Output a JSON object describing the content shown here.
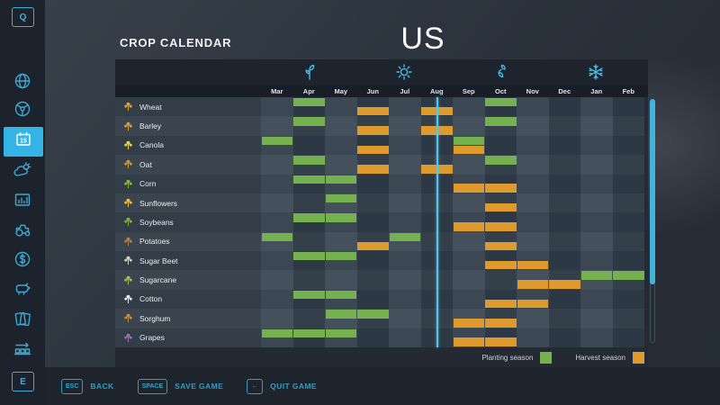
{
  "header": {
    "title": "CROP CALENDAR",
    "map_name": "US"
  },
  "sidebar": {
    "top_key": "Q",
    "bottom_key": "E",
    "items": [
      {
        "icon": "globe-icon",
        "selected": false
      },
      {
        "icon": "steering-wheel-icon",
        "selected": false
      },
      {
        "icon": "calendar-icon",
        "selected": true,
        "badge": "15"
      },
      {
        "icon": "weather-icon",
        "selected": false
      },
      {
        "icon": "statistics-icon",
        "selected": false
      },
      {
        "icon": "tractor-icon",
        "selected": false
      },
      {
        "icon": "finances-dollar-icon",
        "selected": false
      },
      {
        "icon": "animals-cow-icon",
        "selected": false
      },
      {
        "icon": "contracts-icon",
        "selected": false
      },
      {
        "icon": "production-chain-icon",
        "selected": false
      }
    ]
  },
  "calendar": {
    "months": [
      "Mar",
      "Apr",
      "May",
      "Jun",
      "Jul",
      "Aug",
      "Sep",
      "Oct",
      "Nov",
      "Dec",
      "Jan",
      "Feb"
    ],
    "seasons": [
      {
        "name": "spring",
        "icon": "sprout-icon",
        "month": "Apr"
      },
      {
        "name": "summer",
        "icon": "sun-icon",
        "month": "Jul"
      },
      {
        "name": "autumn",
        "icon": "falling-leaf-icon",
        "month": "Oct"
      },
      {
        "name": "winter",
        "icon": "snowflake-icon",
        "month": "Jan"
      }
    ],
    "today_marker": {
      "month": "Aug",
      "fraction": 0.5
    },
    "crops": [
      {
        "name": "Wheat",
        "icon_color": "#d9a441",
        "planting_months": [
          "Apr",
          "Oct"
        ],
        "harvest_months": [
          "Jun",
          "Aug"
        ]
      },
      {
        "name": "Barley",
        "icon_color": "#cfa13e",
        "planting_months": [
          "Apr",
          "Oct"
        ],
        "harvest_months": [
          "Jun",
          "Aug"
        ]
      },
      {
        "name": "Canola",
        "icon_color": "#e8d24a",
        "planting_months": [
          "Mar",
          "Sep"
        ],
        "harvest_months": [
          "Jun",
          "Sep"
        ]
      },
      {
        "name": "Oat",
        "icon_color": "#c8963f",
        "planting_months": [
          "Apr",
          "Oct"
        ],
        "harvest_months": [
          "Jun",
          "Aug"
        ]
      },
      {
        "name": "Corn",
        "icon_color": "#86b93e",
        "planting_months": [
          "Apr",
          "May"
        ],
        "harvest_months": [
          "Sep",
          "Oct"
        ]
      },
      {
        "name": "Sunflowers",
        "icon_color": "#f0c030",
        "planting_months": [
          "May"
        ],
        "harvest_months": [
          "Oct"
        ]
      },
      {
        "name": "Soybeans",
        "icon_color": "#7fae45",
        "planting_months": [
          "Apr",
          "May"
        ],
        "harvest_months": [
          "Sep",
          "Oct"
        ]
      },
      {
        "name": "Potatoes",
        "icon_color": "#b08050",
        "planting_months": [
          "Mar",
          "Jul"
        ],
        "harvest_months": [
          "Jun",
          "Oct"
        ]
      },
      {
        "name": "Sugar Beet",
        "icon_color": "#d8cfc0",
        "planting_months": [
          "Apr",
          "May"
        ],
        "harvest_months": [
          "Oct",
          "Nov"
        ]
      },
      {
        "name": "Sugarcane",
        "icon_color": "#9fc050",
        "planting_months": [
          "Jan",
          "Feb"
        ],
        "harvest_months": [
          "Nov",
          "Dec"
        ]
      },
      {
        "name": "Cotton",
        "icon_color": "#e5e9ea",
        "planting_months": [
          "Apr",
          "May"
        ],
        "harvest_months": [
          "Oct",
          "Nov"
        ]
      },
      {
        "name": "Sorghum",
        "icon_color": "#c98a3a",
        "planting_months": [
          "May",
          "Jun"
        ],
        "harvest_months": [
          "Sep",
          "Oct"
        ]
      },
      {
        "name": "Grapes",
        "icon_color": "#9a6fb0",
        "planting_months": [
          "Mar",
          "Apr",
          "May"
        ],
        "harvest_months": [
          "Sep",
          "Oct"
        ]
      }
    ],
    "legend": [
      {
        "label": "Planting season",
        "color": "#74b14f"
      },
      {
        "label": "Harvest season",
        "color": "#de9a2c"
      }
    ]
  },
  "footer": {
    "buttons": [
      {
        "key": "ESC",
        "label": "BACK"
      },
      {
        "key": "SPACE",
        "label": "SAVE GAME"
      },
      {
        "key": "←",
        "label": "QUIT GAME"
      }
    ]
  },
  "colors": {
    "accent_cyan": "#41b4da",
    "selected_tab": "#34b4e4",
    "panel_bg": "#232a34"
  }
}
